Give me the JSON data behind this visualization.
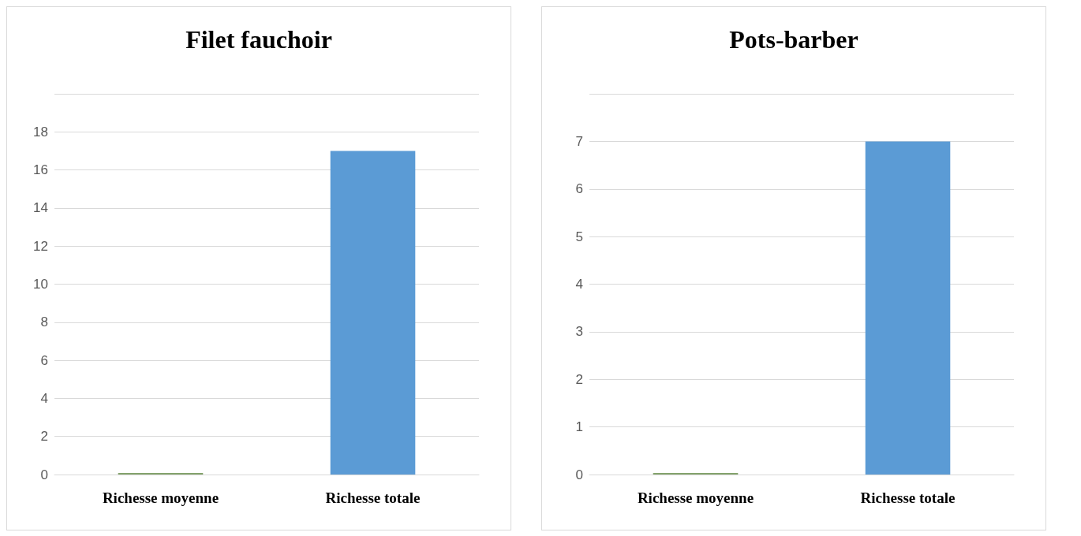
{
  "chart_data": [
    {
      "type": "bar",
      "title": "Filet fauchoir",
      "categories": [
        "Richesse moyenne",
        "Richesse totale"
      ],
      "values": [
        0,
        17
      ],
      "colors": [
        "#84a36c",
        "#5b9bd5"
      ],
      "ylim": [
        0,
        20
      ],
      "yticks": [
        0,
        2,
        4,
        6,
        8,
        10,
        12,
        14,
        16,
        18,
        {
          "value": 20,
          "label": null
        }
      ],
      "grid": "y"
    },
    {
      "type": "bar",
      "title": "Pots-barber",
      "categories": [
        "Richesse moyenne",
        "Richesse totale"
      ],
      "values": [
        0,
        7
      ],
      "colors": [
        "#84a36c",
        "#5b9bd5"
      ],
      "ylim": [
        0,
        8
      ],
      "yticks": [
        0,
        1,
        2,
        3,
        4,
        5,
        6,
        7,
        {
          "value": 8,
          "label": null
        }
      ],
      "grid": "y"
    }
  ]
}
